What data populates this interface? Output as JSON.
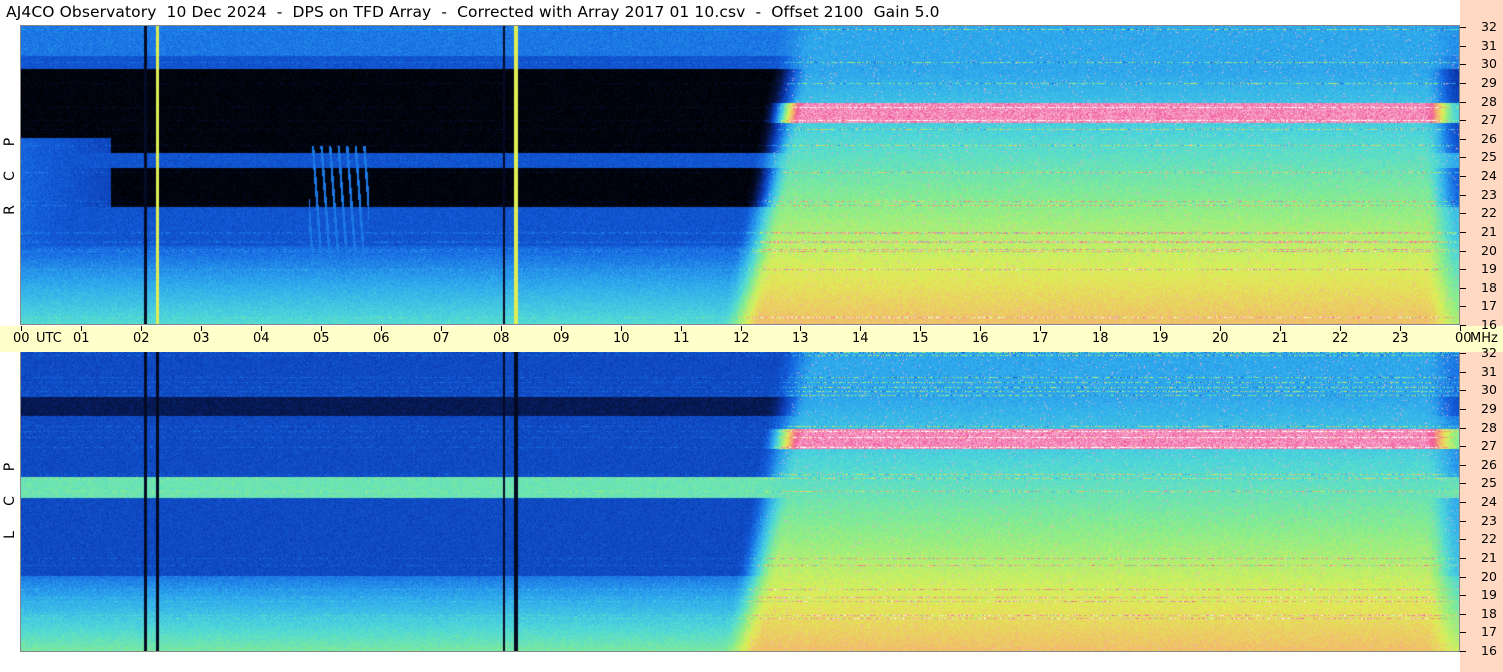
{
  "title": "AJ4CO Observatory  10 Dec 2024  -  DPS on TFD Array  -  Corrected with Array 2017 01 10.csv  -  Offset 2100  Gain 5.0",
  "panels": [
    {
      "label": "R C P",
      "letters": [
        "P",
        "C",
        "R"
      ]
    },
    {
      "label": "L C P",
      "letters": [
        "P",
        "C",
        "L"
      ]
    }
  ],
  "chart_data": {
    "type": "heatmap",
    "title": "AJ4CO Observatory  10 Dec 2024  -  DPS on TFD Array  -  Corrected with Array 2017 01 10.csv  -  Offset 2100  Gain 5.0",
    "x_axis": {
      "unit": "UTC",
      "ticks": [
        "00",
        "01",
        "02",
        "03",
        "04",
        "05",
        "06",
        "07",
        "08",
        "09",
        "10",
        "11",
        "12",
        "13",
        "14",
        "15",
        "16",
        "17",
        "18",
        "19",
        "20",
        "21",
        "22",
        "23",
        "00"
      ],
      "range_hours": [
        0,
        24
      ]
    },
    "y_axis": {
      "unit": "MHz",
      "ticks": [
        16,
        17,
        18,
        19,
        20,
        21,
        22,
        23,
        24,
        25,
        26,
        27,
        28,
        29,
        30,
        31,
        32
      ],
      "range_mhz": [
        16,
        32
      ]
    },
    "series": [
      {
        "name": "R C P"
      },
      {
        "name": "L C P"
      }
    ],
    "features": {
      "vertical_lines_utc": [
        2.27,
        8.25
      ],
      "daytime_onset_utc": 12.5,
      "broadband_interference_mhz": [
        26.8,
        27.3
      ]
    },
    "colormap": [
      "#000000",
      "#06133f",
      "#0a33a6",
      "#1463e0",
      "#2ea9ee",
      "#4fd9d9",
      "#8aee8a",
      "#dfef55",
      "#f5b46e",
      "#f0569b",
      "#ffffff"
    ]
  }
}
